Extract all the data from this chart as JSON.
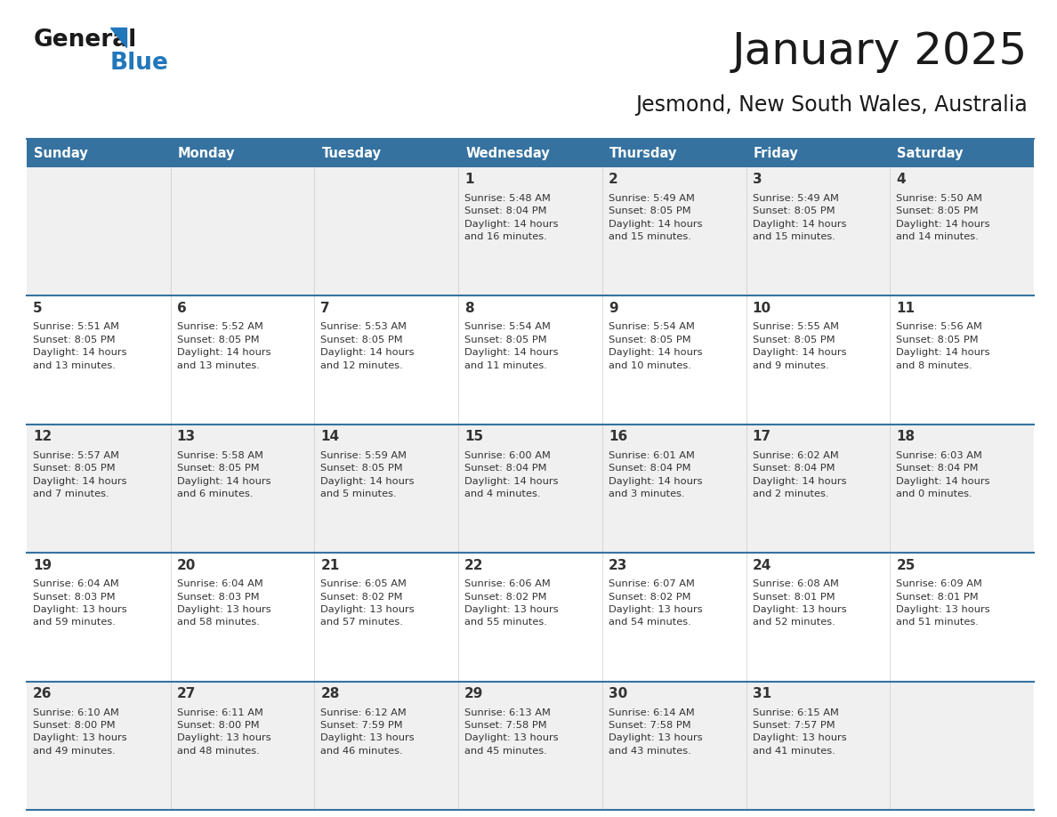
{
  "title": "January 2025",
  "subtitle": "Jesmond, New South Wales, Australia",
  "header_bg": "#3572a0",
  "header_text_color": "#ffffff",
  "days_of_week": [
    "Sunday",
    "Monday",
    "Tuesday",
    "Wednesday",
    "Thursday",
    "Friday",
    "Saturday"
  ],
  "row_bg_odd": "#f0f0f0",
  "row_bg_even": "#ffffff",
  "divider_color": "#3572a0",
  "cell_border_color": "#3572a0",
  "text_color": "#333333",
  "day_num_color": "#333333",
  "title_color": "#1a1a1a",
  "subtitle_color": "#1a1a1a",
  "logo_general_color": "#1a1a1a",
  "logo_blue_color": "#2277bb",
  "logo_triangle_color": "#2277bb",
  "calendar_data": [
    [
      {
        "day": null,
        "info": null
      },
      {
        "day": null,
        "info": null
      },
      {
        "day": null,
        "info": null
      },
      {
        "day": 1,
        "info": "Sunrise: 5:48 AM\nSunset: 8:04 PM\nDaylight: 14 hours\nand 16 minutes."
      },
      {
        "day": 2,
        "info": "Sunrise: 5:49 AM\nSunset: 8:05 PM\nDaylight: 14 hours\nand 15 minutes."
      },
      {
        "day": 3,
        "info": "Sunrise: 5:49 AM\nSunset: 8:05 PM\nDaylight: 14 hours\nand 15 minutes."
      },
      {
        "day": 4,
        "info": "Sunrise: 5:50 AM\nSunset: 8:05 PM\nDaylight: 14 hours\nand 14 minutes."
      }
    ],
    [
      {
        "day": 5,
        "info": "Sunrise: 5:51 AM\nSunset: 8:05 PM\nDaylight: 14 hours\nand 13 minutes."
      },
      {
        "day": 6,
        "info": "Sunrise: 5:52 AM\nSunset: 8:05 PM\nDaylight: 14 hours\nand 13 minutes."
      },
      {
        "day": 7,
        "info": "Sunrise: 5:53 AM\nSunset: 8:05 PM\nDaylight: 14 hours\nand 12 minutes."
      },
      {
        "day": 8,
        "info": "Sunrise: 5:54 AM\nSunset: 8:05 PM\nDaylight: 14 hours\nand 11 minutes."
      },
      {
        "day": 9,
        "info": "Sunrise: 5:54 AM\nSunset: 8:05 PM\nDaylight: 14 hours\nand 10 minutes."
      },
      {
        "day": 10,
        "info": "Sunrise: 5:55 AM\nSunset: 8:05 PM\nDaylight: 14 hours\nand 9 minutes."
      },
      {
        "day": 11,
        "info": "Sunrise: 5:56 AM\nSunset: 8:05 PM\nDaylight: 14 hours\nand 8 minutes."
      }
    ],
    [
      {
        "day": 12,
        "info": "Sunrise: 5:57 AM\nSunset: 8:05 PM\nDaylight: 14 hours\nand 7 minutes."
      },
      {
        "day": 13,
        "info": "Sunrise: 5:58 AM\nSunset: 8:05 PM\nDaylight: 14 hours\nand 6 minutes."
      },
      {
        "day": 14,
        "info": "Sunrise: 5:59 AM\nSunset: 8:05 PM\nDaylight: 14 hours\nand 5 minutes."
      },
      {
        "day": 15,
        "info": "Sunrise: 6:00 AM\nSunset: 8:04 PM\nDaylight: 14 hours\nand 4 minutes."
      },
      {
        "day": 16,
        "info": "Sunrise: 6:01 AM\nSunset: 8:04 PM\nDaylight: 14 hours\nand 3 minutes."
      },
      {
        "day": 17,
        "info": "Sunrise: 6:02 AM\nSunset: 8:04 PM\nDaylight: 14 hours\nand 2 minutes."
      },
      {
        "day": 18,
        "info": "Sunrise: 6:03 AM\nSunset: 8:04 PM\nDaylight: 14 hours\nand 0 minutes."
      }
    ],
    [
      {
        "day": 19,
        "info": "Sunrise: 6:04 AM\nSunset: 8:03 PM\nDaylight: 13 hours\nand 59 minutes."
      },
      {
        "day": 20,
        "info": "Sunrise: 6:04 AM\nSunset: 8:03 PM\nDaylight: 13 hours\nand 58 minutes."
      },
      {
        "day": 21,
        "info": "Sunrise: 6:05 AM\nSunset: 8:02 PM\nDaylight: 13 hours\nand 57 minutes."
      },
      {
        "day": 22,
        "info": "Sunrise: 6:06 AM\nSunset: 8:02 PM\nDaylight: 13 hours\nand 55 minutes."
      },
      {
        "day": 23,
        "info": "Sunrise: 6:07 AM\nSunset: 8:02 PM\nDaylight: 13 hours\nand 54 minutes."
      },
      {
        "day": 24,
        "info": "Sunrise: 6:08 AM\nSunset: 8:01 PM\nDaylight: 13 hours\nand 52 minutes."
      },
      {
        "day": 25,
        "info": "Sunrise: 6:09 AM\nSunset: 8:01 PM\nDaylight: 13 hours\nand 51 minutes."
      }
    ],
    [
      {
        "day": 26,
        "info": "Sunrise: 6:10 AM\nSunset: 8:00 PM\nDaylight: 13 hours\nand 49 minutes."
      },
      {
        "day": 27,
        "info": "Sunrise: 6:11 AM\nSunset: 8:00 PM\nDaylight: 13 hours\nand 48 minutes."
      },
      {
        "day": 28,
        "info": "Sunrise: 6:12 AM\nSunset: 7:59 PM\nDaylight: 13 hours\nand 46 minutes."
      },
      {
        "day": 29,
        "info": "Sunrise: 6:13 AM\nSunset: 7:58 PM\nDaylight: 13 hours\nand 45 minutes."
      },
      {
        "day": 30,
        "info": "Sunrise: 6:14 AM\nSunset: 7:58 PM\nDaylight: 13 hours\nand 43 minutes."
      },
      {
        "day": 31,
        "info": "Sunrise: 6:15 AM\nSunset: 7:57 PM\nDaylight: 13 hours\nand 41 minutes."
      },
      {
        "day": null,
        "info": null
      }
    ]
  ]
}
